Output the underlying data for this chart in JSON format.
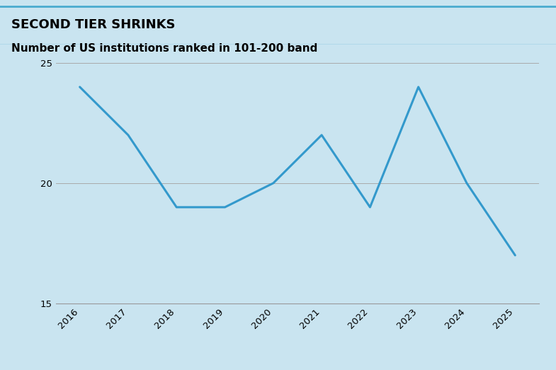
{
  "title_main": "SECOND TIER SHRINKS",
  "subtitle": "Number of US institutions ranked in 101-200 band",
  "years": [
    2016,
    2017,
    2018,
    2019,
    2020,
    2021,
    2022,
    2023,
    2024,
    2025
  ],
  "values": [
    24,
    22,
    19,
    19,
    20,
    22,
    19,
    24,
    20,
    17
  ],
  "line_color": "#3399CC",
  "line_width": 2.2,
  "ylim": [
    15,
    25
  ],
  "yticks": [
    15,
    20,
    25
  ],
  "background_color": "#C9E4F0",
  "plot_bg_color": "#C9E4F0",
  "header_bg_color": "#C9E4F0",
  "grid_color": "#AAAAAA",
  "title_color": "#000000",
  "subtitle_color": "#000000",
  "title_fontsize": 13,
  "subtitle_fontsize": 11,
  "tick_fontsize": 9.5
}
